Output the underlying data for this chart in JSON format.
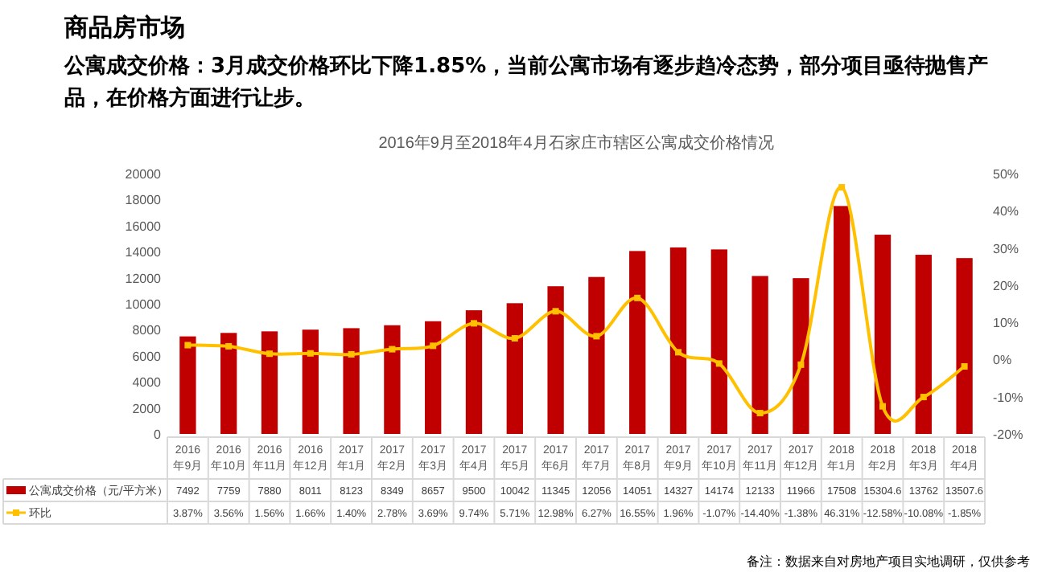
{
  "chart_data": {
    "type": "bar",
    "title": "2016年9月至2018年4月石家庄市辖区公寓成交价格情况",
    "subtitle": "公寓成交价格：3月成交价格环比下降1.85%，当前公寓市场有逐步趋冷态势，部分项目亟待抛售产品，在价格方面进行让步。",
    "annotations": [
      "商品房市场",
      "备注：数据来自对房地产项目实地调研，仅供参考"
    ],
    "categories": [
      "2016 年9月",
      "2016 年10月",
      "2016 年11月",
      "2016 年12月",
      "2017 年1月",
      "2017 年2月",
      "2017 年3月",
      "2017 年4月",
      "2017 年5月",
      "2017 年6月",
      "2017 年7月",
      "2017 年8月",
      "2017 年9月",
      "2017 年10月",
      "2017 年11月",
      "2017 年12月",
      "2018 年1月",
      "2018 年2月",
      "2018 年3月",
      "2018 年4月"
    ],
    "series": [
      {
        "name": "公寓成交价格（元/平方米）",
        "color": "#c00000",
        "values": [
          7492,
          7759,
          7880,
          8011,
          8123,
          8349,
          8657,
          9500,
          10042,
          11345,
          12056,
          14051,
          14327,
          14174,
          12133,
          11966,
          17508,
          15304.6,
          13762,
          13507.6
        ]
      },
      {
        "name": "环比",
        "type": "line",
        "axis": "y2",
        "color": "#ffc000",
        "marker": "square",
        "values": [
          3.87,
          3.56,
          1.56,
          1.66,
          1.4,
          2.78,
          3.69,
          9.74,
          5.71,
          12.98,
          6.27,
          16.55,
          1.96,
          -1.07,
          -14.4,
          -1.38,
          46.31,
          -12.58,
          -10.08,
          -1.85
        ],
        "value_labels": [
          "3.87%",
          "3.56%",
          "1.56%",
          "1.66%",
          "1.40%",
          "2.78%",
          "3.69%",
          "9.74%",
          "5.71%",
          "12.98%",
          "6.27%",
          "16.55%",
          "1.96%",
          "-1.07%",
          "-14.40%",
          "-1.38%",
          "46.31%",
          "-12.58%",
          "-10.08%",
          "-1.85%"
        ]
      }
    ],
    "data_labels": true,
    "legend": "bottom",
    "ylim": [
      0,
      20000
    ],
    "yticks": [
      0,
      2000,
      4000,
      6000,
      8000,
      10000,
      12000,
      14000,
      16000,
      18000,
      20000
    ],
    "y2lim": [
      -20,
      50
    ],
    "y2ticks": [
      {
        "value": -20,
        "label": "-20%"
      },
      {
        "value": -10,
        "label": "-10%"
      },
      {
        "value": 0,
        "label": "0%"
      },
      {
        "value": 10,
        "label": "10%"
      },
      {
        "value": 20,
        "label": "20%"
      },
      {
        "value": 30,
        "label": "30%"
      },
      {
        "value": 40,
        "label": "40%"
      },
      {
        "value": 50,
        "label": "50%"
      }
    ]
  }
}
